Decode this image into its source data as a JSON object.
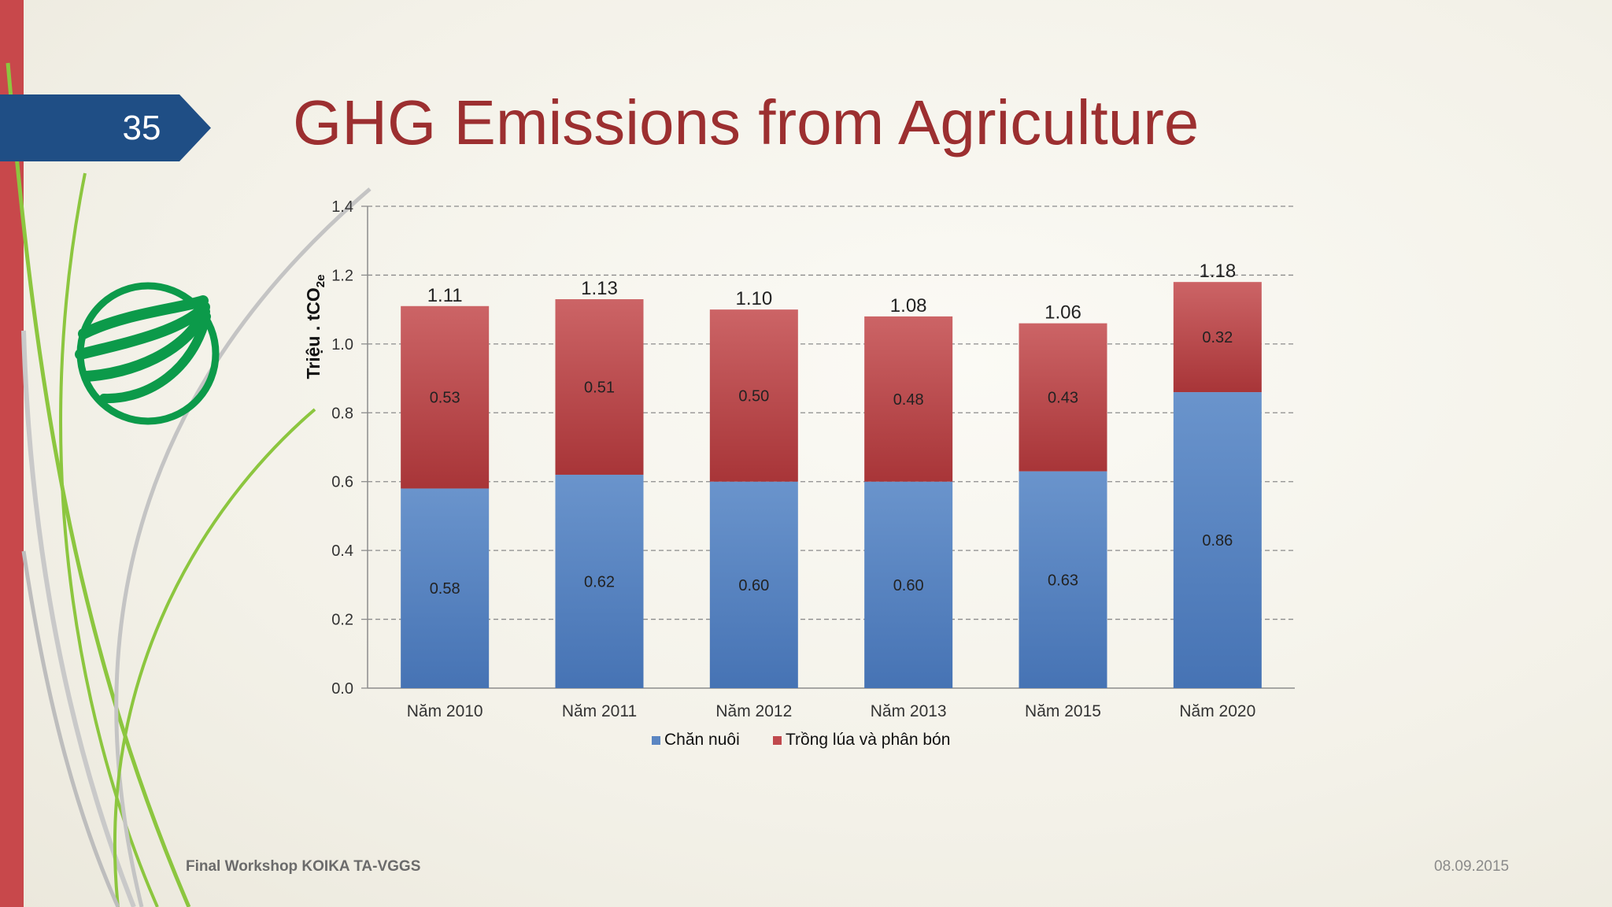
{
  "slide": {
    "number": "35",
    "title": "GHG Emissions from Agriculture",
    "footer_left": "Final Workshop KOIKA TA-VGGS",
    "footer_right": "08.09.2015"
  },
  "colors": {
    "accent_red": "#c8484b",
    "title_red": "#9c2f30",
    "tab_blue": "#1f4e85",
    "series_blue": "#5b86c2",
    "series_red": "#c0494d",
    "logo_green": "#0c9a4a"
  },
  "chart_data": {
    "type": "bar",
    "stacked": true,
    "title": "",
    "xlabel": "",
    "ylabel_main": "Triệu . tCO",
    "ylabel_sub": "2e",
    "ylim": [
      0,
      1.4
    ],
    "yticks": [
      "0.0",
      "0.2",
      "0.4",
      "0.6",
      "0.8",
      "1.0",
      "1.2",
      "1.4"
    ],
    "categories": [
      "Năm 2010",
      "Năm 2011",
      "Năm 2012",
      "Năm 2013",
      "Năm 2015",
      "Năm 2020"
    ],
    "series": [
      {
        "name": "Chăn nuôi",
        "color": "#5b86c2",
        "values": [
          0.58,
          0.62,
          0.6,
          0.6,
          0.63,
          0.86
        ],
        "labels": [
          "0.58",
          "0.62",
          "0.60",
          "0.60",
          "0.63",
          "0.86"
        ]
      },
      {
        "name": "Trồng lúa và phân bón",
        "color": "#c0494d",
        "values": [
          0.53,
          0.51,
          0.5,
          0.48,
          0.43,
          0.32
        ],
        "labels": [
          "0.53",
          "0.51",
          "0.50",
          "0.48",
          "0.43",
          "0.32"
        ]
      }
    ],
    "totals": [
      "1.11",
      "1.13",
      "1.10",
      "1.08",
      "1.06",
      "1.18"
    ],
    "grid": true,
    "legend_position": "bottom"
  }
}
